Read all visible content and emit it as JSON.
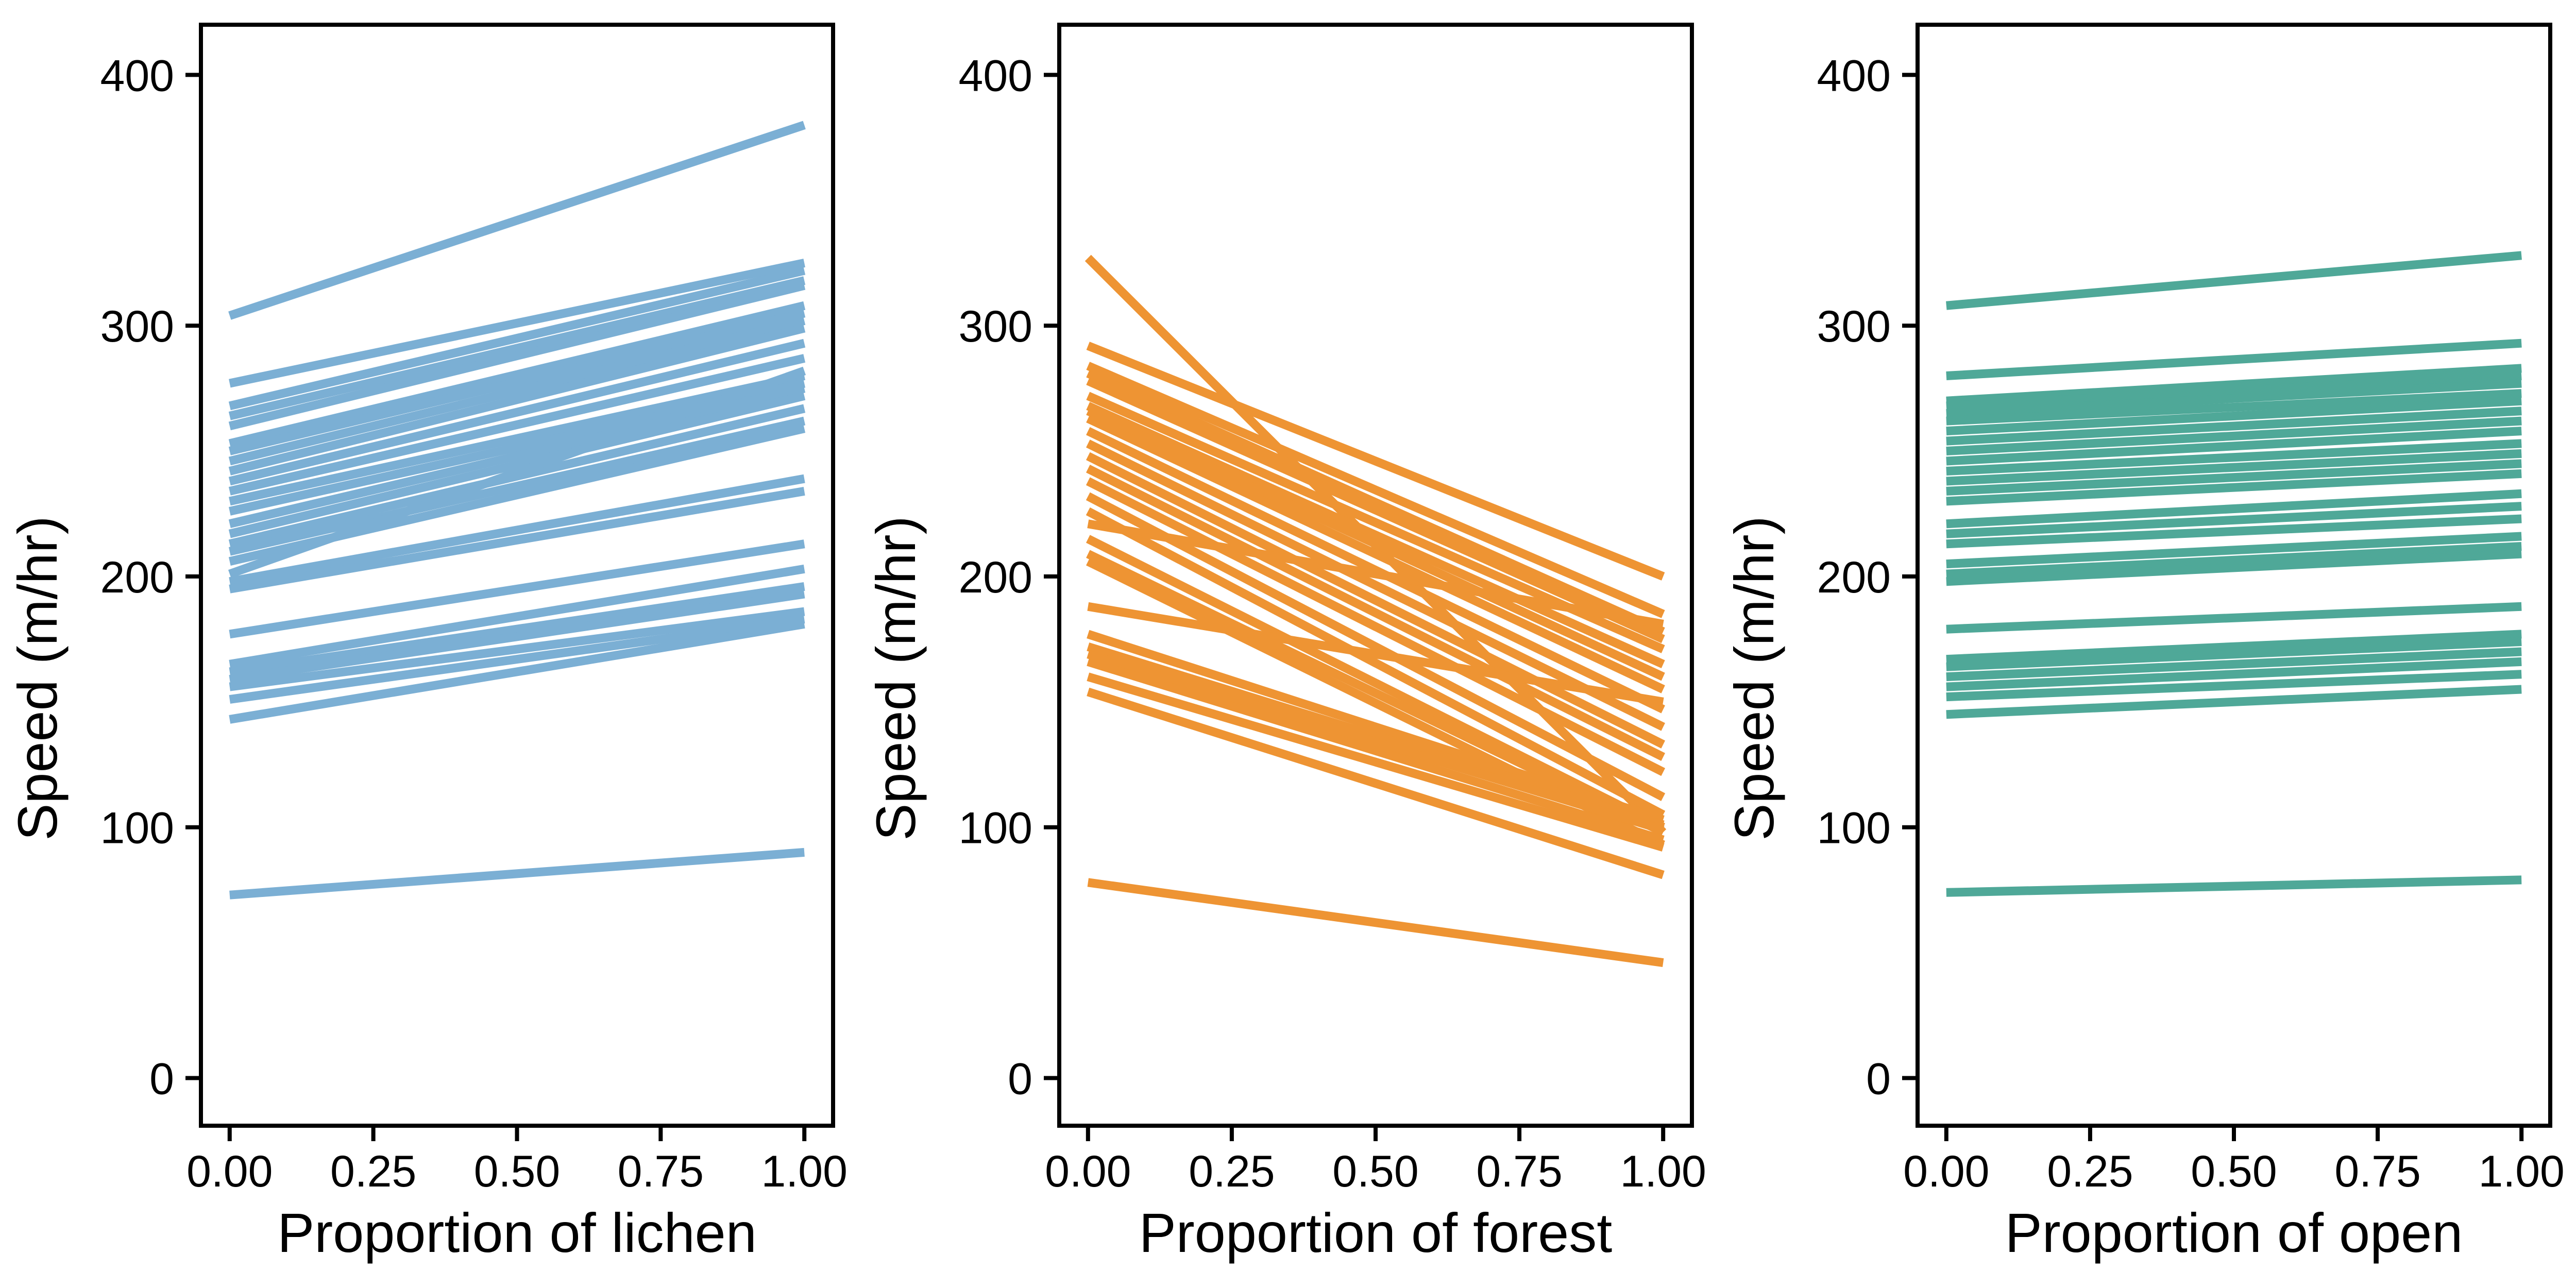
{
  "chart_data": [
    {
      "type": "line",
      "color": "#7BAFD4",
      "xlabel": "Proportion of lichen",
      "ylabel": "Speed (m/hr)",
      "xlim": [
        -0.05,
        1.05
      ],
      "ylim": [
        -19,
        420
      ],
      "xticks": [
        "0.00",
        "0.25",
        "0.50",
        "0.75",
        "1.00"
      ],
      "yticks": [
        "0",
        "100",
        "200",
        "300",
        "400"
      ],
      "x": [
        0,
        1
      ],
      "series": [
        {
          "values": [
            304,
            380
          ]
        },
        {
          "values": [
            277,
            325
          ]
        },
        {
          "values": [
            268,
            322
          ]
        },
        {
          "values": [
            264,
            318
          ]
        },
        {
          "values": [
            260,
            316
          ]
        },
        {
          "values": [
            253,
            308
          ]
        },
        {
          "values": [
            250,
            305
          ]
        },
        {
          "values": [
            246,
            302
          ]
        },
        {
          "values": [
            242,
            299
          ]
        },
        {
          "values": [
            238,
            293
          ]
        },
        {
          "values": [
            234,
            287
          ]
        },
        {
          "values": [
            230,
            280
          ]
        },
        {
          "values": [
            226,
            277
          ]
        },
        {
          "values": [
            221,
            275
          ]
        },
        {
          "values": [
            217,
            272
          ]
        },
        {
          "values": [
            213,
            267
          ]
        },
        {
          "values": [
            210,
            262
          ]
        },
        {
          "values": [
            206,
            259
          ]
        },
        {
          "values": [
            201,
            282
          ]
        },
        {
          "values": [
            198,
            239
          ]
        },
        {
          "values": [
            195,
            234
          ]
        },
        {
          "values": [
            177,
            213
          ]
        },
        {
          "values": [
            165,
            203
          ]
        },
        {
          "values": [
            162,
            196
          ]
        },
        {
          "values": [
            159,
            193
          ]
        },
        {
          "values": [
            156,
            186
          ]
        },
        {
          "values": [
            151,
            183
          ]
        },
        {
          "values": [
            143,
            181
          ]
        },
        {
          "values": [
            73,
            90
          ]
        }
      ]
    },
    {
      "type": "line",
      "color": "#EE9433",
      "xlabel": "Proportion of forest",
      "ylabel": "Speed (m/hr)",
      "xlim": [
        -0.05,
        1.05
      ],
      "ylim": [
        -19,
        420
      ],
      "xticks": [
        "0.00",
        "0.25",
        "0.50",
        "0.75",
        "1.00"
      ],
      "yticks": [
        "0",
        "100",
        "200",
        "300",
        "400"
      ],
      "x": [
        0,
        1
      ],
      "series": [
        {
          "values": [
            327,
            98
          ]
        },
        {
          "values": [
            292,
            200
          ]
        },
        {
          "values": [
            284,
            185
          ]
        },
        {
          "values": [
            281,
            178
          ]
        },
        {
          "values": [
            278,
            175
          ]
        },
        {
          "values": [
            272,
            171
          ]
        },
        {
          "values": [
            268,
            165
          ]
        },
        {
          "values": [
            266,
            160
          ]
        },
        {
          "values": [
            263,
            155
          ]
        },
        {
          "values": [
            258,
            147
          ]
        },
        {
          "values": [
            253,
            140
          ]
        },
        {
          "values": [
            248,
            133
          ]
        },
        {
          "values": [
            243,
            128
          ]
        },
        {
          "values": [
            238,
            122
          ]
        },
        {
          "values": [
            232,
            112
          ]
        },
        {
          "values": [
            226,
            105
          ]
        },
        {
          "values": [
            221,
            181
          ]
        },
        {
          "values": [
            215,
            100
          ]
        },
        {
          "values": [
            209,
            98
          ]
        },
        {
          "values": [
            206,
            93
          ]
        },
        {
          "values": [
            188,
            150
          ]
        },
        {
          "values": [
            177,
            103
          ]
        },
        {
          "values": [
            172,
            101
          ]
        },
        {
          "values": [
            169,
            99
          ]
        },
        {
          "values": [
            166,
            95
          ]
        },
        {
          "values": [
            160,
            92
          ]
        },
        {
          "values": [
            154,
            81
          ]
        },
        {
          "values": [
            78,
            46
          ]
        }
      ]
    },
    {
      "type": "line",
      "color": "#4FA898",
      "xlabel": "Proportion of open",
      "ylabel": "Speed (m/hr)",
      "xlim": [
        -0.05,
        1.05
      ],
      "ylim": [
        -19,
        420
      ],
      "xticks": [
        "0.00",
        "0.25",
        "0.50",
        "0.75",
        "1.00"
      ],
      "yticks": [
        "0",
        "100",
        "200",
        "300",
        "400"
      ],
      "x": [
        0,
        1
      ],
      "series": [
        {
          "values": [
            308,
            328
          ]
        },
        {
          "values": [
            280,
            293
          ]
        },
        {
          "values": [
            270,
            283
          ]
        },
        {
          "values": [
            268,
            280
          ]
        },
        {
          "values": [
            265,
            277
          ]
        },
        {
          "values": [
            262,
            273
          ]
        },
        {
          "values": [
            258,
            270
          ]
        },
        {
          "values": [
            254,
            266
          ]
        },
        {
          "values": [
            250,
            262
          ]
        },
        {
          "values": [
            246,
            258
          ]
        },
        {
          "values": [
            242,
            253
          ]
        },
        {
          "values": [
            238,
            249
          ]
        },
        {
          "values": [
            234,
            245
          ]
        },
        {
          "values": [
            230,
            241
          ]
        },
        {
          "values": [
            221,
            233
          ]
        },
        {
          "values": [
            217,
            228
          ]
        },
        {
          "values": [
            213,
            223
          ]
        },
        {
          "values": [
            205,
            216
          ]
        },
        {
          "values": [
            201,
            212
          ]
        },
        {
          "values": [
            198,
            209
          ]
        },
        {
          "values": [
            179,
            188
          ]
        },
        {
          "values": [
            167,
            177
          ]
        },
        {
          "values": [
            164,
            174
          ]
        },
        {
          "values": [
            160,
            170
          ]
        },
        {
          "values": [
            156,
            166
          ]
        },
        {
          "values": [
            152,
            161
          ]
        },
        {
          "values": [
            145,
            155
          ]
        },
        {
          "values": [
            74,
            79
          ]
        }
      ]
    }
  ]
}
